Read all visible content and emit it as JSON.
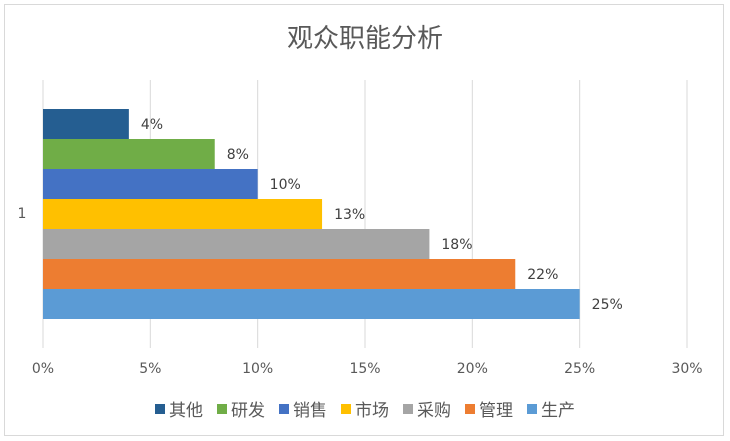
{
  "chart_data": {
    "type": "bar",
    "orientation": "horizontal",
    "title": "观众职能分析",
    "categories": [
      "1"
    ],
    "xlim": [
      0,
      30
    ],
    "x_ticks": [
      "0%",
      "5%",
      "10%",
      "15%",
      "20%",
      "25%",
      "30%"
    ],
    "grid": true,
    "legend_position": "bottom",
    "series": [
      {
        "name": "其他",
        "values": [
          4
        ],
        "label": "4%",
        "color": "#255e91"
      },
      {
        "name": "研发",
        "values": [
          8
        ],
        "label": "8%",
        "color": "#70ad47"
      },
      {
        "name": "销售",
        "values": [
          10
        ],
        "label": "10%",
        "color": "#4472c4"
      },
      {
        "name": "市场",
        "values": [
          13
        ],
        "label": "13%",
        "color": "#ffc000"
      },
      {
        "name": "采购",
        "values": [
          18
        ],
        "label": "18%",
        "color": "#a5a5a5"
      },
      {
        "name": "管理",
        "values": [
          22
        ],
        "label": "22%",
        "color": "#ed7d31"
      },
      {
        "name": "生产",
        "values": [
          25
        ],
        "label": "25%",
        "color": "#5b9bd5"
      }
    ]
  }
}
